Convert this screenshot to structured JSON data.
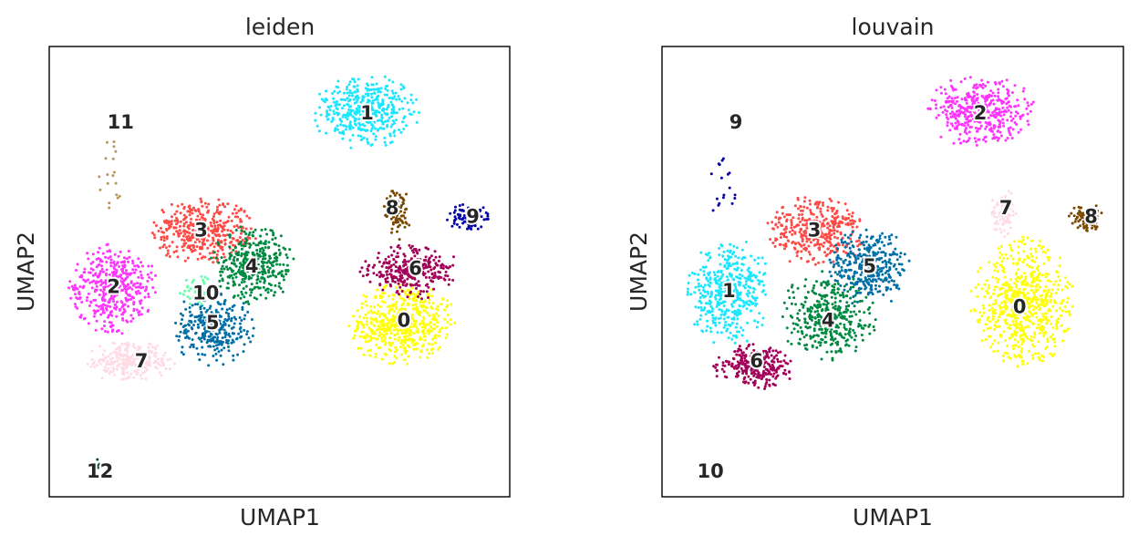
{
  "chart_data": [
    {
      "type": "scatter",
      "title": "leiden",
      "xlabel": "UMAP1",
      "ylabel": "UMAP2",
      "xlim": [
        0,
        10
      ],
      "ylim": [
        0,
        10
      ],
      "clusters": [
        {
          "label": "0",
          "color": "#ffff00",
          "cx": 7.65,
          "cy": 3.85,
          "rx": 1.15,
          "ry": 0.9,
          "n": 520
        },
        {
          "label": "1",
          "color": "#1ce6ff",
          "cx": 6.9,
          "cy": 8.55,
          "rx": 1.15,
          "ry": 0.8,
          "n": 420
        },
        {
          "label": "2",
          "color": "#ff34ff",
          "cx": 1.4,
          "cy": 4.65,
          "rx": 0.95,
          "ry": 1.0,
          "n": 420
        },
        {
          "label": "3",
          "color": "#ff4a46",
          "cx": 3.35,
          "cy": 5.9,
          "rx": 1.15,
          "ry": 0.7,
          "n": 380
        },
        {
          "label": "4",
          "color": "#008941",
          "cx": 4.45,
          "cy": 5.15,
          "rx": 0.9,
          "ry": 0.9,
          "n": 360
        },
        {
          "label": "5",
          "color": "#006fa6",
          "cx": 3.55,
          "cy": 3.75,
          "rx": 0.85,
          "ry": 0.8,
          "n": 320
        },
        {
          "label": "6",
          "color": "#a30059",
          "cx": 7.85,
          "cy": 5.0,
          "rx": 1.05,
          "ry": 0.6,
          "n": 300
        },
        {
          "label": "7",
          "color": "#ffdbe5",
          "cx": 1.75,
          "cy": 3.0,
          "rx": 0.95,
          "ry": 0.45,
          "n": 240
        },
        {
          "label": "8",
          "color": "#7a4900",
          "cx": 7.55,
          "cy": 6.3,
          "rx": 0.3,
          "ry": 0.6,
          "n": 90
        },
        {
          "label": "9",
          "color": "#0000a6",
          "cx": 9.1,
          "cy": 6.2,
          "rx": 0.45,
          "ry": 0.3,
          "n": 90
        },
        {
          "label": "10",
          "color": "#63ffac",
          "cx": 3.2,
          "cy": 4.6,
          "rx": 0.5,
          "ry": 0.35,
          "n": 40
        },
        {
          "label": "11",
          "color": "#b79762",
          "cx": 1.3,
          "cy": 7.1,
          "rx": 0.35,
          "ry": 1.1,
          "n": 18
        },
        {
          "label": "12",
          "color": "#004d43",
          "cx": 1.07,
          "cy": 0.7,
          "rx": 0.05,
          "ry": 0.2,
          "n": 4
        }
      ],
      "label_positions": [
        {
          "label": "0",
          "x": 7.7,
          "y": 3.9
        },
        {
          "label": "1",
          "x": 6.9,
          "y": 8.5
        },
        {
          "label": "2",
          "x": 1.4,
          "y": 4.65
        },
        {
          "label": "3",
          "x": 3.3,
          "y": 5.9
        },
        {
          "label": "4",
          "x": 4.4,
          "y": 5.1
        },
        {
          "label": "5",
          "x": 3.55,
          "y": 3.85
        },
        {
          "label": "6",
          "x": 7.95,
          "y": 5.05
        },
        {
          "label": "7",
          "x": 2.0,
          "y": 3.0
        },
        {
          "label": "8",
          "x": 7.45,
          "y": 6.4
        },
        {
          "label": "9",
          "x": 9.2,
          "y": 6.2
        },
        {
          "label": "10",
          "x": 3.4,
          "y": 4.5
        },
        {
          "label": "11",
          "x": 1.55,
          "y": 8.3
        },
        {
          "label": "12",
          "x": 1.1,
          "y": 0.55
        }
      ]
    },
    {
      "type": "scatter",
      "title": "louvain",
      "xlabel": "UMAP1",
      "ylabel": "UMAP2",
      "xlim": [
        0,
        10
      ],
      "ylim": [
        0,
        10
      ],
      "clusters": [
        {
          "label": "0",
          "color": "#ffff00",
          "cx": 7.8,
          "cy": 4.3,
          "rx": 1.1,
          "ry": 1.4,
          "n": 620
        },
        {
          "label": "1",
          "color": "#1ce6ff",
          "cx": 1.45,
          "cy": 4.55,
          "rx": 0.9,
          "ry": 1.15,
          "n": 420
        },
        {
          "label": "2",
          "color": "#ff34ff",
          "cx": 6.9,
          "cy": 8.55,
          "rx": 1.15,
          "ry": 0.8,
          "n": 420
        },
        {
          "label": "3",
          "color": "#ff4a46",
          "cx": 3.35,
          "cy": 5.9,
          "rx": 1.1,
          "ry": 0.75,
          "n": 380
        },
        {
          "label": "4",
          "color": "#008941",
          "cx": 3.6,
          "cy": 4.0,
          "rx": 1.0,
          "ry": 1.0,
          "n": 380
        },
        {
          "label": "5",
          "color": "#006fa6",
          "cx": 4.5,
          "cy": 5.1,
          "rx": 0.85,
          "ry": 0.85,
          "n": 340
        },
        {
          "label": "6",
          "color": "#a30059",
          "cx": 2.0,
          "cy": 2.9,
          "rx": 0.9,
          "ry": 0.5,
          "n": 260
        },
        {
          "label": "7",
          "color": "#ffdbe5",
          "cx": 7.4,
          "cy": 6.3,
          "rx": 0.3,
          "ry": 0.5,
          "n": 70
        },
        {
          "label": "8",
          "color": "#7a4900",
          "cx": 9.2,
          "cy": 6.2,
          "rx": 0.4,
          "ry": 0.3,
          "n": 80
        },
        {
          "label": "9",
          "color": "#0000a6",
          "cx": 1.3,
          "cy": 7.0,
          "rx": 0.3,
          "ry": 0.9,
          "n": 18
        },
        {
          "label": "10",
          "color": "#63ffac",
          "cx": 1.1,
          "cy": 0.7,
          "rx": 0.05,
          "ry": 0.15,
          "n": 4
        }
      ],
      "label_positions": [
        {
          "label": "0",
          "x": 7.75,
          "y": 4.2
        },
        {
          "label": "1",
          "x": 1.45,
          "y": 4.55
        },
        {
          "label": "2",
          "x": 6.9,
          "y": 8.5
        },
        {
          "label": "3",
          "x": 3.3,
          "y": 5.9
        },
        {
          "label": "4",
          "x": 3.6,
          "y": 3.9
        },
        {
          "label": "5",
          "x": 4.5,
          "y": 5.1
        },
        {
          "label": "6",
          "x": 2.05,
          "y": 3.0
        },
        {
          "label": "7",
          "x": 7.45,
          "y": 6.4
        },
        {
          "label": "8",
          "x": 9.3,
          "y": 6.2
        },
        {
          "label": "9",
          "x": 1.6,
          "y": 8.3
        },
        {
          "label": "10",
          "x": 1.05,
          "y": 0.55
        }
      ]
    }
  ]
}
